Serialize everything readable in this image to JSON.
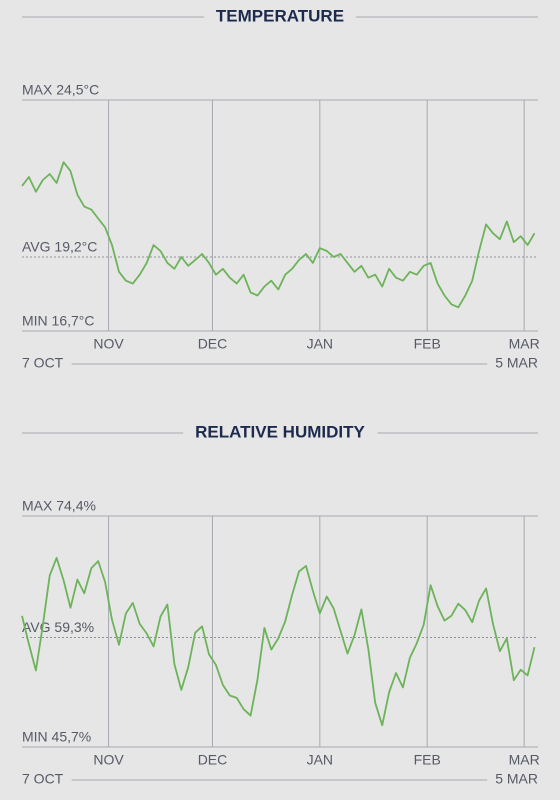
{
  "chart_data": [
    {
      "type": "line",
      "title": "TEMPERATURE",
      "color": "#6db35a",
      "x": [
        0,
        2,
        4,
        6,
        8,
        10,
        12,
        14,
        16,
        18,
        20,
        22,
        24,
        26,
        28,
        30,
        32,
        34,
        36,
        38,
        40,
        42,
        44,
        46,
        48,
        50,
        52,
        54,
        56,
        58,
        60,
        62,
        64,
        66,
        68,
        70,
        72,
        74,
        76,
        78,
        80,
        82,
        84,
        86,
        88,
        90,
        92,
        94,
        96,
        98,
        100,
        102,
        104,
        106,
        108,
        110,
        112,
        114,
        116,
        118,
        120,
        122,
        124,
        126,
        128,
        130,
        132,
        134,
        136,
        138,
        140,
        142,
        144,
        146,
        148
      ],
      "values": [
        21.6,
        21.9,
        21.4,
        21.8,
        22.0,
        21.7,
        22.4,
        22.1,
        21.3,
        20.9,
        20.8,
        20.5,
        20.2,
        19.6,
        18.7,
        18.4,
        18.3,
        18.6,
        19.0,
        19.6,
        19.4,
        19.0,
        18.8,
        19.2,
        18.9,
        19.1,
        19.3,
        19.0,
        18.6,
        18.8,
        18.5,
        18.3,
        18.6,
        18.0,
        17.9,
        18.2,
        18.4,
        18.1,
        18.6,
        18.8,
        19.1,
        19.3,
        19.0,
        19.5,
        19.4,
        19.2,
        19.3,
        19.0,
        18.7,
        18.9,
        18.5,
        18.6,
        18.2,
        18.8,
        18.5,
        18.4,
        18.7,
        18.6,
        18.9,
        19.0,
        18.3,
        17.9,
        17.6,
        17.5,
        17.9,
        18.4,
        19.4,
        20.3,
        20.0,
        19.8,
        20.4,
        19.7,
        19.9,
        19.6,
        20.0
      ],
      "ylim": [
        16.7,
        24.5
      ],
      "yticks": [
        {
          "value": 16.7,
          "label": "MIN 16,7°C"
        },
        {
          "value": 19.2,
          "label": "AVG 19,2°C"
        },
        {
          "value": 24.5,
          "label": "MAX 24,5°C"
        }
      ],
      "xlim": [
        {
          "value": 0,
          "label": "7 OCT"
        },
        {
          "value": 149,
          "label": "5 MAR"
        }
      ],
      "xticks": [
        {
          "value": 25,
          "label": "NOV"
        },
        {
          "value": 55,
          "label": "DEC"
        },
        {
          "value": 86,
          "label": "JAN"
        },
        {
          "value": 117,
          "label": "FEB"
        },
        {
          "value": 145,
          "label": "MAR"
        }
      ]
    },
    {
      "type": "line",
      "title": "RELATIVE HUMIDITY",
      "color": "#6db35a",
      "x": [
        0,
        2,
        4,
        6,
        8,
        10,
        12,
        14,
        16,
        18,
        20,
        22,
        24,
        26,
        28,
        30,
        32,
        34,
        36,
        38,
        40,
        42,
        44,
        46,
        48,
        50,
        52,
        54,
        56,
        58,
        60,
        62,
        64,
        66,
        68,
        70,
        72,
        74,
        76,
        78,
        80,
        82,
        84,
        86,
        88,
        90,
        92,
        94,
        96,
        98,
        100,
        102,
        104,
        106,
        108,
        110,
        112,
        114,
        116,
        118,
        120,
        122,
        124,
        126,
        128,
        130,
        132,
        134,
        136,
        138,
        140,
        142,
        144,
        146,
        148
      ],
      "values": [
        62.0,
        58.5,
        55.2,
        60.8,
        67.0,
        69.2,
        66.4,
        63.0,
        66.5,
        64.8,
        67.9,
        68.8,
        66.2,
        61.5,
        58.4,
        62.3,
        63.6,
        61.0,
        59.8,
        58.2,
        61.9,
        63.4,
        56.0,
        52.8,
        55.6,
        59.9,
        60.7,
        57.2,
        55.9,
        53.4,
        52.1,
        51.8,
        50.4,
        49.6,
        54.1,
        60.5,
        57.8,
        59.2,
        61.3,
        64.6,
        67.5,
        68.2,
        65.1,
        62.3,
        64.4,
        62.9,
        60.1,
        57.3,
        59.6,
        62.8,
        57.9,
        51.2,
        48.4,
        52.5,
        54.9,
        53.1,
        56.8,
        58.6,
        60.9,
        65.8,
        63.2,
        61.4,
        62.0,
        63.5,
        62.7,
        61.2,
        63.9,
        65.4,
        61.0,
        57.6,
        59.2,
        54.0,
        55.3,
        54.6,
        58.1
      ],
      "ylim": [
        45.7,
        74.4
      ],
      "yticks": [
        {
          "value": 45.7,
          "label": "MIN 45,7%"
        },
        {
          "value": 59.3,
          "label": "AVG 59,3%"
        },
        {
          "value": 74.4,
          "label": "MAX 74,4%"
        }
      ],
      "xlim": [
        {
          "value": 0,
          "label": "7 OCT"
        },
        {
          "value": 149,
          "label": "5 MAR"
        }
      ],
      "xticks": [
        {
          "value": 25,
          "label": "NOV"
        },
        {
          "value": 55,
          "label": "DEC"
        },
        {
          "value": 86,
          "label": "JAN"
        },
        {
          "value": 117,
          "label": "FEB"
        },
        {
          "value": 145,
          "label": "MAR"
        }
      ]
    }
  ]
}
